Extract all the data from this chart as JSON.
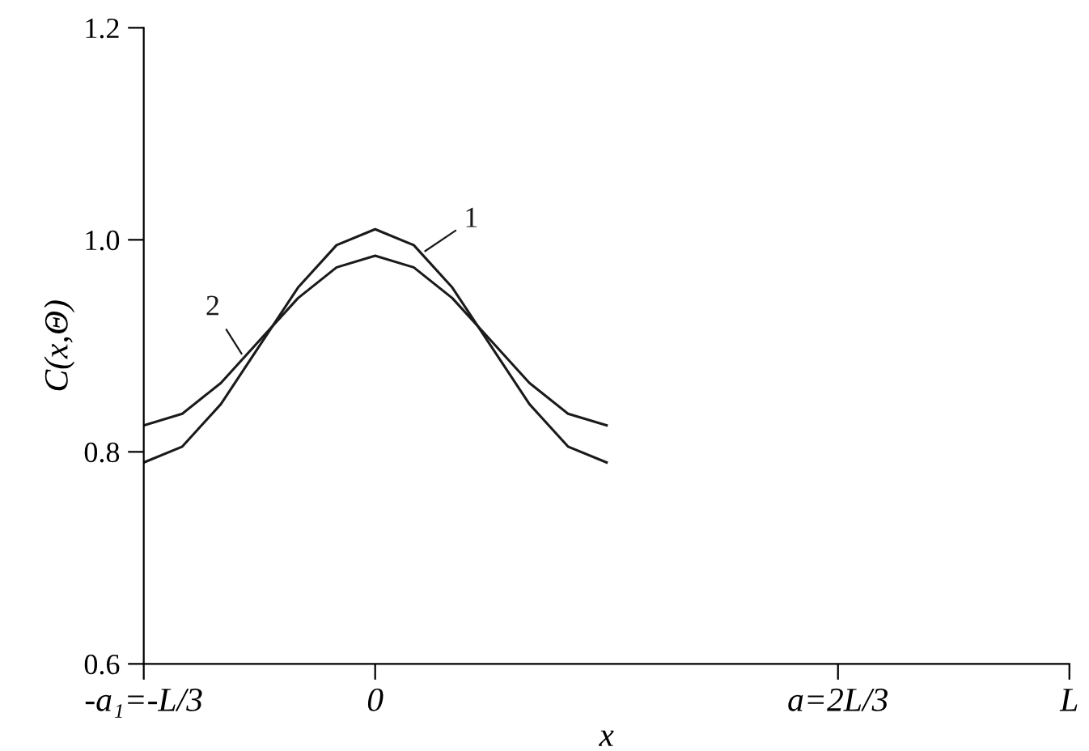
{
  "chart_data": {
    "type": "line",
    "xlabel": "x",
    "ylabel": "C(x,Θ)",
    "categories": [
      "-a₁=-L/3",
      null,
      null,
      null,
      null,
      null,
      "0",
      null,
      null,
      null,
      null,
      null,
      null,
      null,
      null,
      null,
      null,
      null,
      "a=2L/3",
      null,
      null,
      null,
      null,
      null,
      "L"
    ],
    "ylim": [
      0.6,
      1.2
    ],
    "yticks": [
      {
        "value": 0.6,
        "label": "0.6"
      },
      {
        "value": 0.8,
        "label": "0.8"
      },
      {
        "value": 1.0,
        "label": "1.0"
      },
      {
        "value": 1.2,
        "label": "1.2"
      }
    ],
    "series": [
      {
        "name": "1",
        "color": "#1a1a1a",
        "values": [
          0.79,
          0.805,
          0.845,
          0.9,
          0.955,
          0.995,
          1.01,
          0.995,
          0.955,
          0.9,
          0.845,
          0.805,
          0.79,
          null,
          null,
          null,
          null,
          null,
          null,
          null,
          null,
          null,
          null,
          null,
          null
        ]
      },
      {
        "name": "2",
        "color": "#1a1a1a",
        "values": [
          0.825,
          0.836,
          0.865,
          0.905,
          0.945,
          0.974,
          0.985,
          0.974,
          0.945,
          0.905,
          0.865,
          0.836,
          0.825,
          null,
          null,
          null,
          null,
          null,
          null,
          null,
          null,
          null,
          null,
          null,
          null
        ]
      }
    ],
    "grid": false,
    "legend": false,
    "marker": "none",
    "line_style": "solid"
  }
}
